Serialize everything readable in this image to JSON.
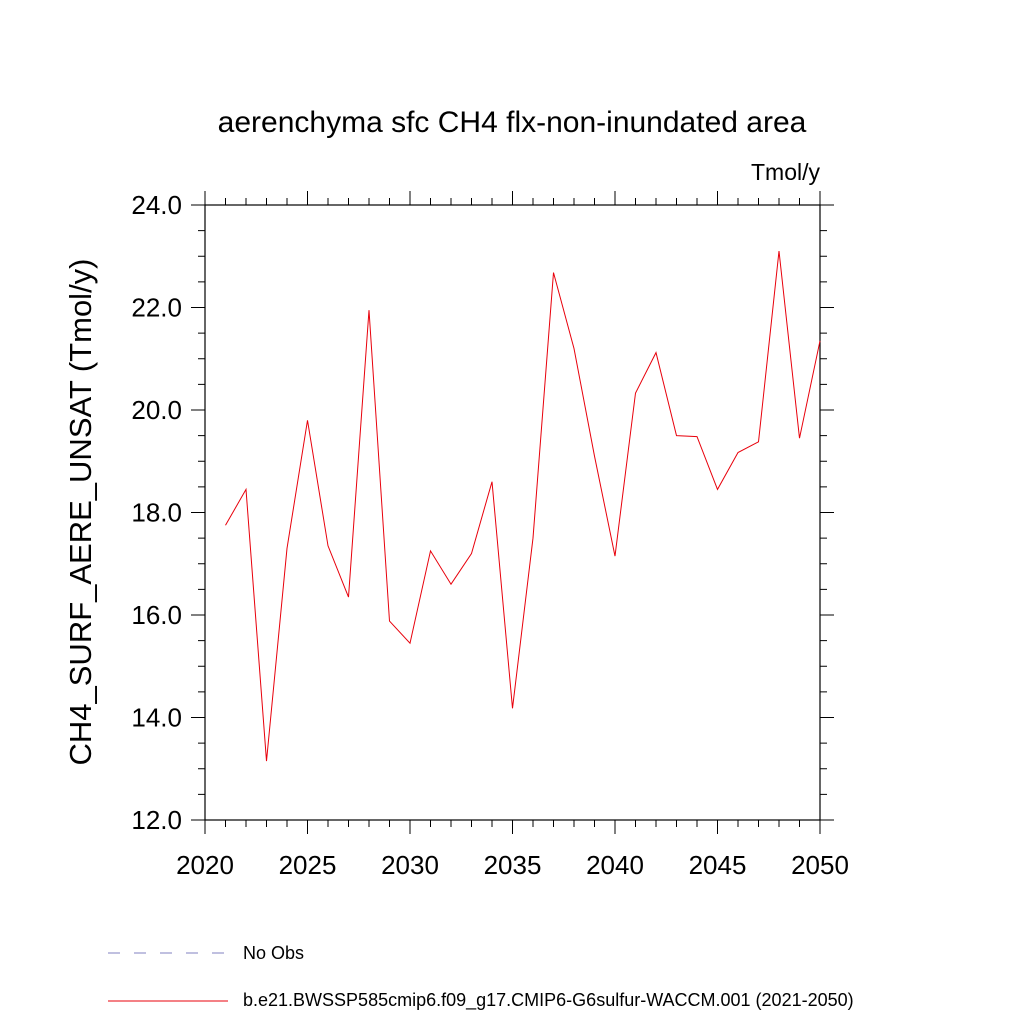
{
  "chart_data": {
    "type": "line",
    "title": "aerenchyma sfc CH4 flx-non-inundated area",
    "units_label": "Tmol/y",
    "xlabel": "",
    "ylabel": "CH4_SURF_AERE_UNSAT  (Tmol/y)",
    "xlim": [
      2020,
      2050
    ],
    "ylim": [
      12.0,
      24.0
    ],
    "x_ticks": [
      2020,
      2025,
      2030,
      2035,
      2040,
      2045,
      2050
    ],
    "y_ticks": [
      "12.0",
      "14.0",
      "16.0",
      "18.0",
      "20.0",
      "22.0",
      "24.0"
    ],
    "grid": false,
    "series": [
      {
        "name": "b.e21.BWSSP585cmip6.f09_g17.CMIP6-G6sulfur-WACCM.001 (2021-2050)",
        "color": "#e8000b",
        "x": [
          2021,
          2022,
          2023,
          2024,
          2025,
          2026,
          2027,
          2028,
          2029,
          2030,
          2031,
          2032,
          2033,
          2034,
          2035,
          2036,
          2037,
          2038,
          2039,
          2040,
          2041,
          2042,
          2043,
          2044,
          2045,
          2046,
          2047,
          2048,
          2049,
          2050
        ],
        "values": [
          17.75,
          18.45,
          13.15,
          17.3,
          19.8,
          17.35,
          16.35,
          21.95,
          15.88,
          15.45,
          17.25,
          16.6,
          17.2,
          18.6,
          14.18,
          17.5,
          22.68,
          21.2,
          19.1,
          17.15,
          20.33,
          21.12,
          19.5,
          19.48,
          18.45,
          19.17,
          19.38,
          23.1,
          19.45,
          21.35
        ]
      }
    ],
    "legend": {
      "placement": "bottom",
      "entries": [
        {
          "label": "No Obs",
          "color": "#8080c0",
          "style": "dashed"
        },
        {
          "label": "b.e21.BWSSP585cmip6.f09_g17.CMIP6-G6sulfur-WACCM.001 (2021-2050)",
          "color": "#e8000b",
          "style": "solid"
        }
      ]
    }
  }
}
